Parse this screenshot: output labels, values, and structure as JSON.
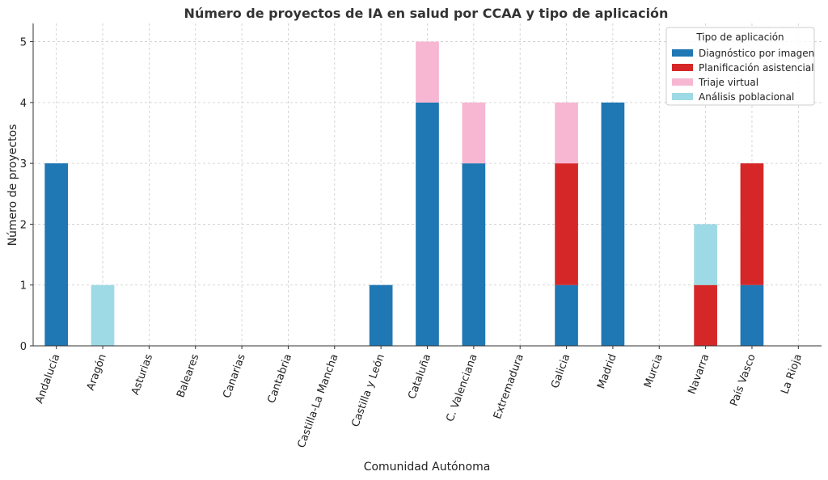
{
  "chart_data": {
    "type": "bar",
    "stacked": true,
    "title": "Número de proyectos de IA en salud por CCAA y tipo de aplicación",
    "xlabel": "Comunidad Autónoma",
    "ylabel": "Número de proyectos",
    "ylim": [
      0,
      5.3
    ],
    "yticks": [
      0,
      1,
      2,
      3,
      4,
      5
    ],
    "grid": true,
    "legend_placement": "top-right",
    "legend_title": "Tipo de aplicación",
    "categories": [
      "Andalucía",
      "Aragón",
      "Asturias",
      "Baleares",
      "Canarias",
      "Cantabria",
      "Castilla-La Mancha",
      "Castilla y León",
      "Cataluña",
      "C. Valenciana",
      "Extremadura",
      "Galicia",
      "Madrid",
      "Murcia",
      "Navarra",
      "País Vasco",
      "La Rioja"
    ],
    "series": [
      {
        "name": "Diagnóstico por imagen",
        "color": "#1f77b4",
        "values": [
          3,
          0,
          0,
          0,
          0,
          0,
          0,
          1,
          4,
          3,
          0,
          1,
          4,
          0,
          0,
          1,
          0
        ]
      },
      {
        "name": "Planificación asistencial",
        "color": "#d62728",
        "values": [
          0,
          0,
          0,
          0,
          0,
          0,
          0,
          0,
          0,
          0,
          0,
          2,
          0,
          0,
          1,
          2,
          0
        ]
      },
      {
        "name": "Triaje virtual",
        "color": "#f7b6d2",
        "values": [
          0,
          0,
          0,
          0,
          0,
          0,
          0,
          0,
          1,
          1,
          0,
          1,
          0,
          0,
          0,
          0,
          0
        ]
      },
      {
        "name": "Análisis poblacional",
        "color": "#9edae5",
        "values": [
          0,
          1,
          0,
          0,
          0,
          0,
          0,
          0,
          0,
          0,
          0,
          0,
          0,
          0,
          1,
          0,
          0
        ]
      }
    ]
  }
}
